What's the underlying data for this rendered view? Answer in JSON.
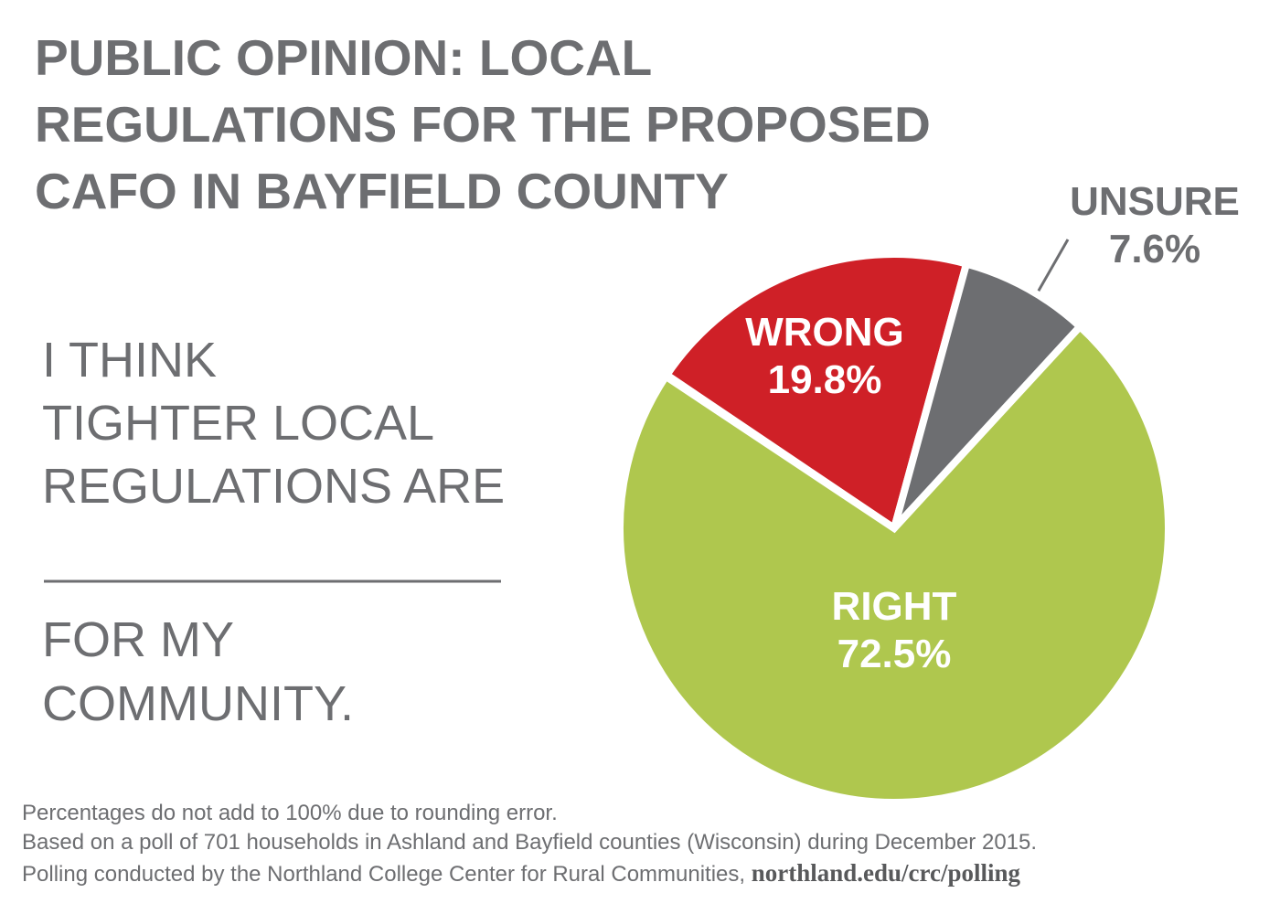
{
  "chart_data": {
    "type": "pie",
    "title_lines": [
      "PUBLIC OPINION: LOCAL",
      "REGULATIONS FOR THE PROPOSED",
      "CAFO IN BAYFIELD COUNTY"
    ],
    "prompt_lines": [
      "I THINK",
      "TIGHTER LOCAL",
      "REGULATIONS ARE"
    ],
    "prompt_end_lines": [
      "FOR MY",
      "COMMUNITY."
    ],
    "categories": [
      "WRONG",
      "UNSURE",
      "RIGHT"
    ],
    "values": [
      19.8,
      7.6,
      72.5
    ],
    "value_labels": [
      "19.8%",
      "7.6%",
      "72.5%"
    ],
    "colors": [
      "#cf2027",
      "#6d6e71",
      "#afc74e"
    ],
    "notes": [
      "Percentages do not add to 100% due to rounding error.",
      "Based on a poll of 701 households in Ashland and Bayfield counties (Wisconsin) during December 2015.",
      "Polling conducted by the Northland College Center for Rural Communities,"
    ],
    "url": "northland.edu/crc/polling"
  }
}
